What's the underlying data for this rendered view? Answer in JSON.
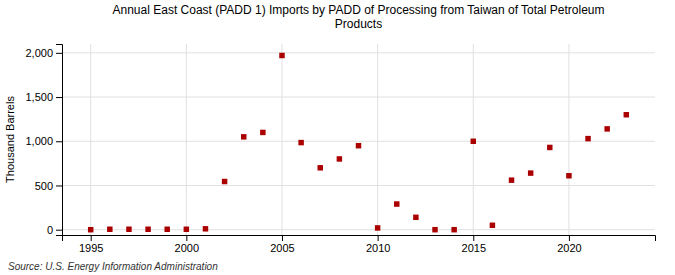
{
  "chart_data": {
    "type": "scatter",
    "title": "Annual East Coast (PADD 1) Imports by PADD of Processing from Taiwan of Total Petroleum\nProducts",
    "ylabel": "Thousand Barrels",
    "annotations": [
      "Source: U.S. Energy Information Administration"
    ],
    "x": [
      1995,
      1996,
      1997,
      1998,
      1999,
      2000,
      2001,
      2002,
      2003,
      2004,
      2005,
      2006,
      2007,
      2008,
      2009,
      2010,
      2011,
      2012,
      2013,
      2014,
      2015,
      2016,
      2017,
      2018,
      2019,
      2020,
      2021,
      2022,
      2023
    ],
    "values": [
      0,
      5,
      5,
      5,
      5,
      5,
      10,
      545,
      1050,
      1100,
      1970,
      985,
      700,
      800,
      950,
      20,
      290,
      140,
      0,
      0,
      1000,
      50,
      560,
      640,
      930,
      610,
      1030,
      1140,
      1300
    ],
    "color": "#aa0000",
    "marker": "square",
    "xlim": [
      1993.5,
      2024.5
    ],
    "ylim": [
      -60,
      2100
    ],
    "xticks": [
      1995,
      2000,
      2005,
      2010,
      2015,
      2020
    ],
    "yticks": [
      0,
      500,
      {
        "value": 1000,
        "label": "1,000"
      },
      {
        "value": 1500,
        "label": "1,500"
      },
      {
        "value": 2000,
        "label": "2,000"
      }
    ],
    "grid": true
  }
}
